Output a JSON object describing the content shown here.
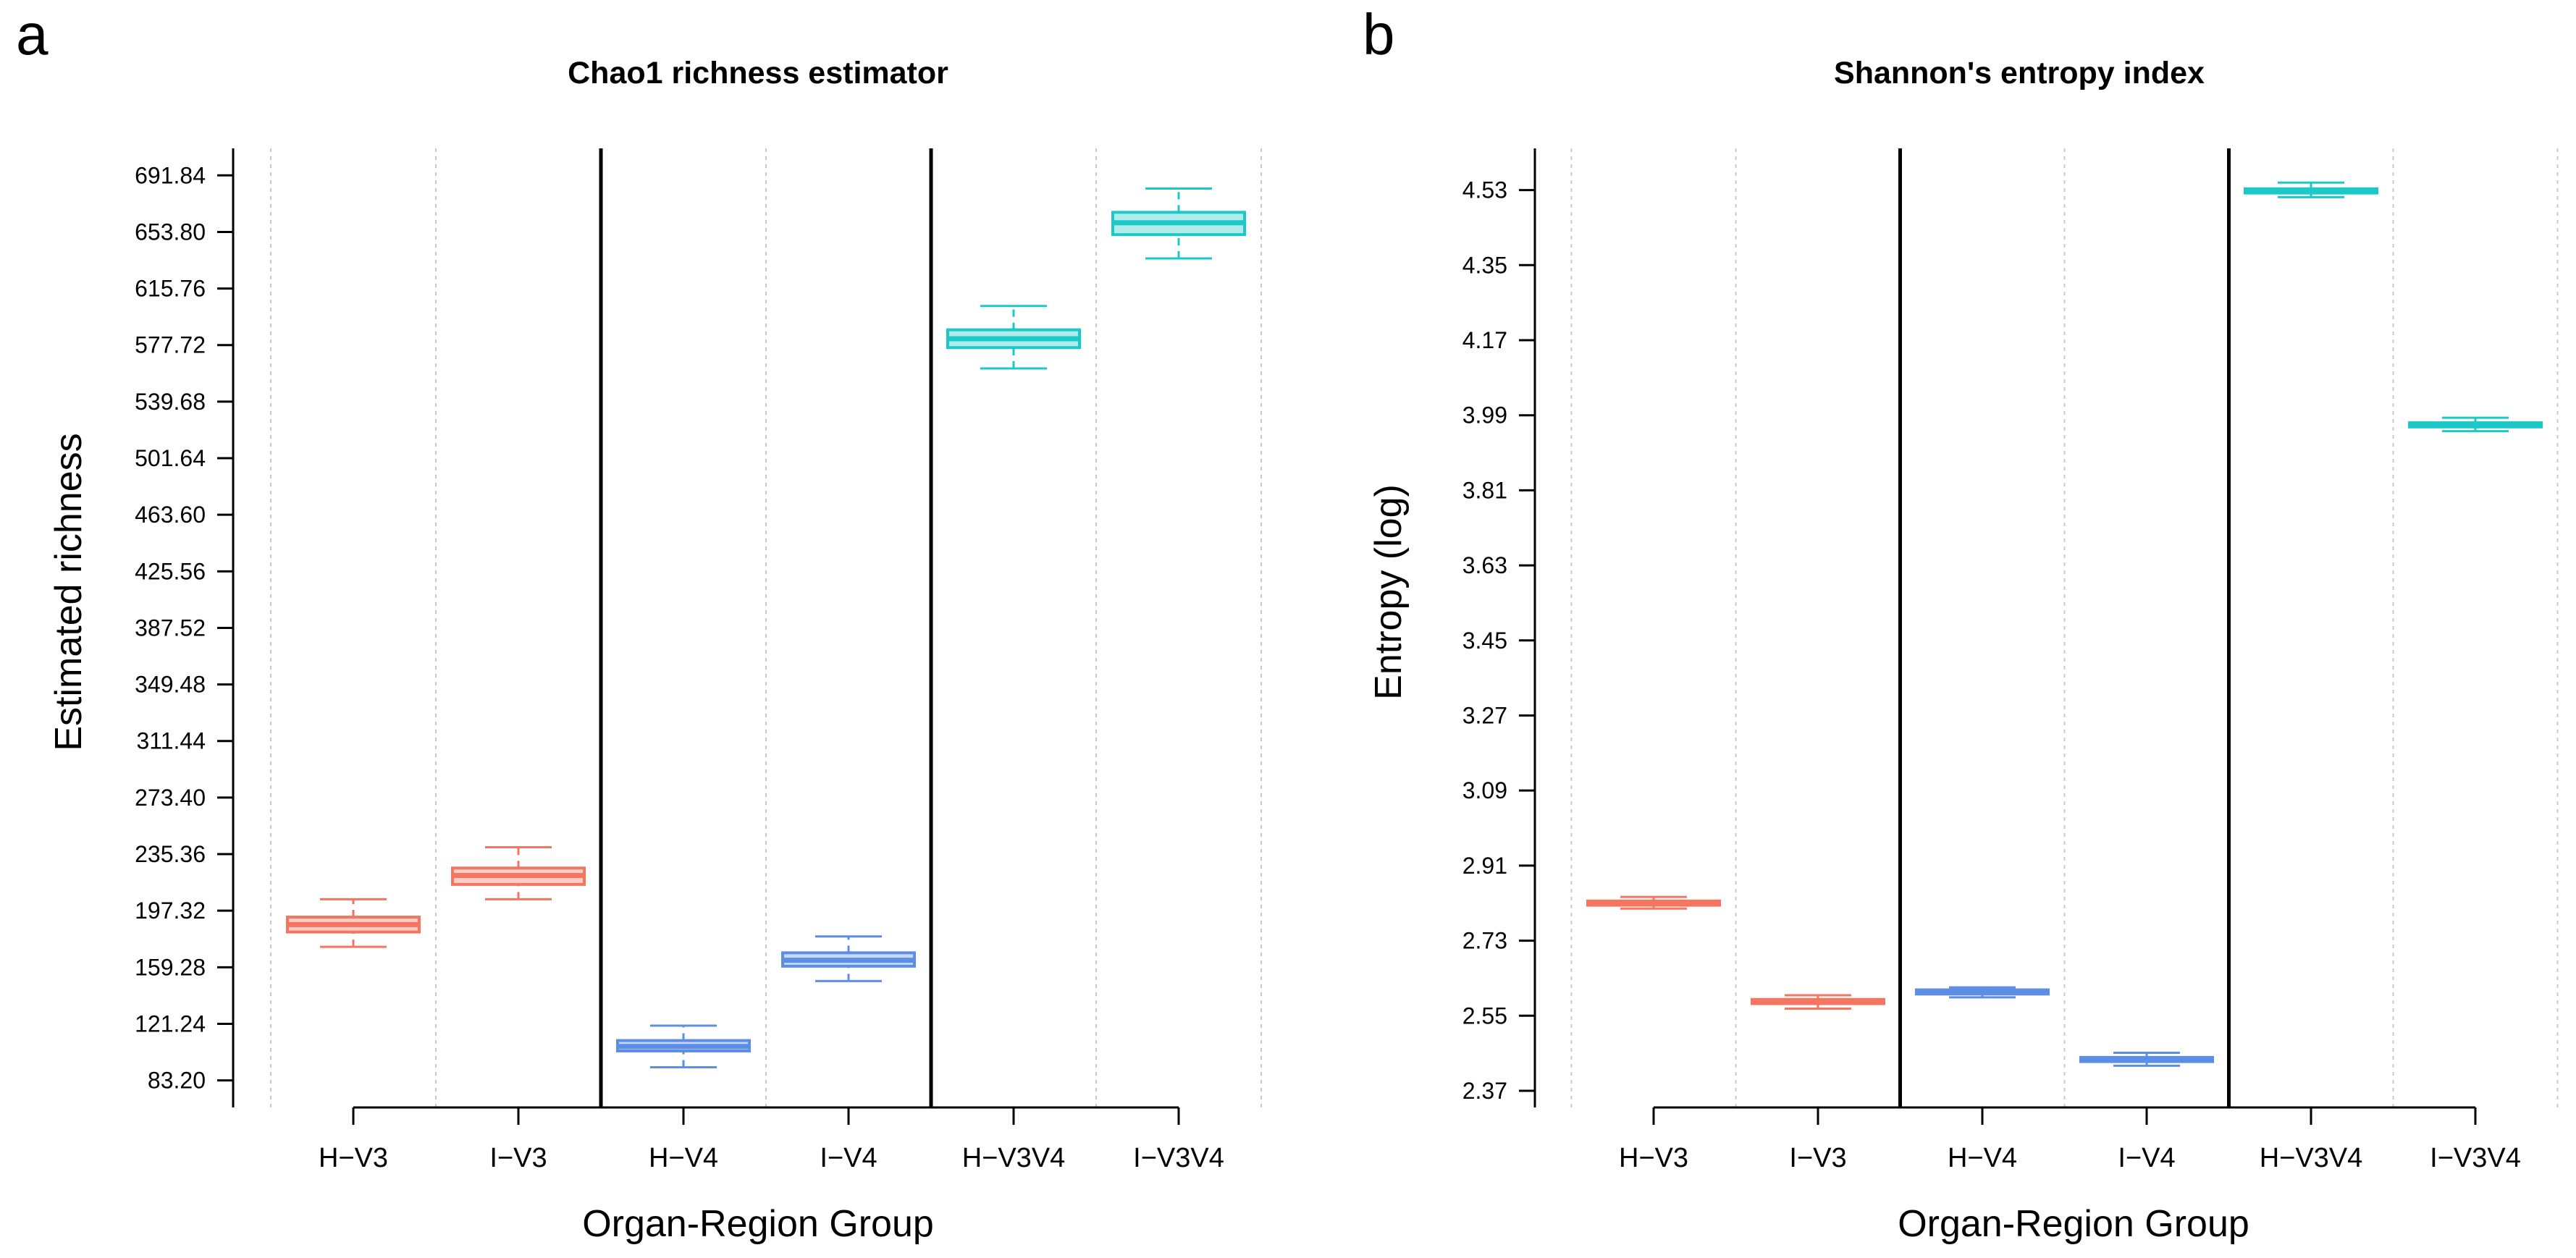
{
  "colors": {
    "V3": "#f47560",
    "V4": "#5c8ee6",
    "V3V4": "#1cc9c9",
    "grid": "#c8c8c8"
  },
  "chart_data": [
    {
      "panel_letter": "a",
      "type": "boxplot",
      "title": "Chao1 richness estimator",
      "xlabel": "Organ-Region Group",
      "ylabel": "Estimated richness",
      "categories": [
        "H−V3",
        "I−V3",
        "H−V4",
        "I−V4",
        "H−V3V4",
        "I−V3V4"
      ],
      "region_groups": [
        "V3",
        "V3",
        "V4",
        "V4",
        "V3V4",
        "V3V4"
      ],
      "yticks": [
        "83.20",
        "121.24",
        "159.28",
        "197.32",
        "235.36",
        "273.40",
        "311.44",
        "349.48",
        "387.52",
        "425.56",
        "463.60",
        "501.64",
        "539.68",
        "577.72",
        "615.76",
        "653.80",
        "691.84"
      ],
      "ylim": [
        65,
        710
      ],
      "boxes": [
        {
          "whisker_low": 173,
          "q1": 183,
          "median": 188,
          "q3": 193,
          "whisker_high": 205
        },
        {
          "whisker_low": 205,
          "q1": 215,
          "median": 221,
          "q3": 226,
          "whisker_high": 240
        },
        {
          "whisker_low": 92,
          "q1": 103,
          "median": 106,
          "q3": 110,
          "whisker_high": 120
        },
        {
          "whisker_low": 150,
          "q1": 160,
          "median": 164,
          "q3": 169,
          "whisker_high": 180
        },
        {
          "whisker_low": 562,
          "q1": 576,
          "median": 582,
          "q3": 588,
          "whisker_high": 604
        },
        {
          "whisker_low": 636,
          "q1": 652,
          "median": 660,
          "q3": 667,
          "whisker_high": 683
        }
      ]
    },
    {
      "panel_letter": "b",
      "type": "boxplot",
      "title": "Shannon's entropy index",
      "xlabel": "Organ-Region Group",
      "ylabel": "Entropy (log)",
      "categories": [
        "H−V3",
        "I−V3",
        "H−V4",
        "I−V4",
        "H−V3V4",
        "I−V3V4"
      ],
      "region_groups": [
        "V3",
        "V3",
        "V4",
        "V4",
        "V3V4",
        "V3V4"
      ],
      "yticks": [
        "2.37",
        "2.55",
        "2.73",
        "2.91",
        "3.09",
        "3.27",
        "3.45",
        "3.63",
        "3.81",
        "3.99",
        "4.17",
        "4.35",
        "4.53"
      ],
      "ylim": [
        2.33,
        4.63
      ],
      "boxes": [
        {
          "whisker_low": 2.807,
          "q1": 2.815,
          "median": 2.82,
          "q3": 2.825,
          "whisker_high": 2.835
        },
        {
          "whisker_low": 2.567,
          "q1": 2.579,
          "median": 2.584,
          "q3": 2.589,
          "whisker_high": 2.599
        },
        {
          "whisker_low": 2.594,
          "q1": 2.602,
          "median": 2.607,
          "q3": 2.612,
          "whisker_high": 2.618
        },
        {
          "whisker_low": 2.43,
          "q1": 2.44,
          "median": 2.445,
          "q3": 2.45,
          "whisker_high": 2.461
        },
        {
          "whisker_low": 4.513,
          "q1": 4.523,
          "median": 4.528,
          "q3": 4.533,
          "whisker_high": 4.548
        },
        {
          "whisker_low": 3.952,
          "q1": 3.962,
          "median": 3.967,
          "q3": 3.972,
          "whisker_high": 3.984
        }
      ]
    }
  ]
}
